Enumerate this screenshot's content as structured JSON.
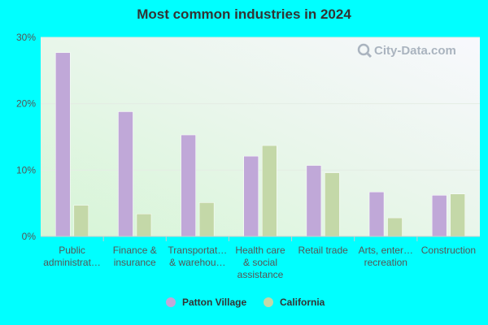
{
  "chart_data": {
    "type": "bar",
    "title": "Most common industries in 2024",
    "xlabel": "",
    "ylabel": "",
    "ylim": [
      0,
      30
    ],
    "yticks": [
      "0%",
      "10%",
      "20%",
      "30%"
    ],
    "ytick_values": [
      0,
      10,
      20,
      30
    ],
    "categories": [
      [
        "Public",
        "administrat…"
      ],
      [
        "Finance &",
        "insurance"
      ],
      [
        "Transportat…",
        "& warehou…"
      ],
      [
        "Health care",
        "& social",
        "assistance"
      ],
      [
        "Retail trade"
      ],
      [
        "Arts, enter…",
        "recreation"
      ],
      [
        "Construction"
      ]
    ],
    "series": [
      {
        "name": "Patton Village",
        "color": "#c0a8d8",
        "values": [
          27.7,
          18.8,
          15.3,
          12.1,
          10.7,
          6.7,
          6.2
        ]
      },
      {
        "name": "California",
        "color": "#c4d8a8",
        "values": [
          4.7,
          3.4,
          5.1,
          13.7,
          9.6,
          2.8,
          6.4
        ]
      }
    ],
    "grid": true,
    "legend_position": "bottom"
  },
  "watermark": {
    "text": "City-Data.com",
    "icon": "search-icon"
  }
}
